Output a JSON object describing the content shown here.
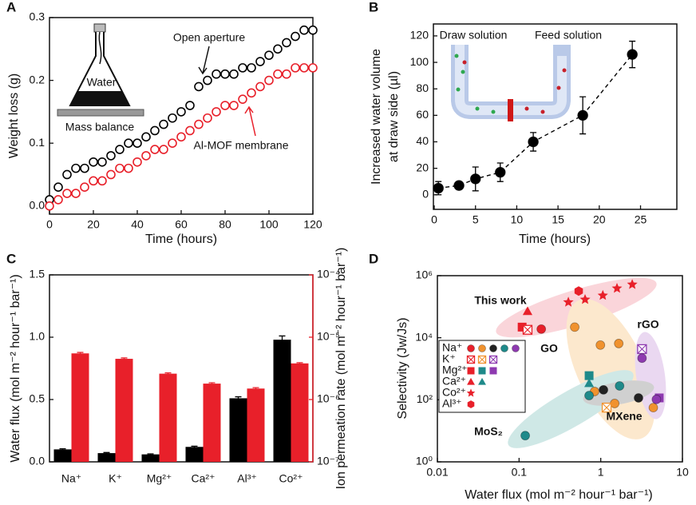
{
  "chart_data": [
    {
      "panel": "A",
      "type": "scatter",
      "xlabel": "Time (hours)",
      "ylabel": "Weight loss (g)",
      "x": [
        0,
        4,
        8,
        12,
        16,
        20,
        24,
        28,
        32,
        36,
        40,
        44,
        48,
        52,
        56,
        60,
        64,
        68,
        72,
        76,
        80,
        84,
        88,
        92,
        96,
        100,
        104,
        108,
        112,
        116,
        120
      ],
      "series": [
        {
          "name": "Open aperture",
          "color": "#000000",
          "marker": "open-circle",
          "values": [
            0.01,
            0.03,
            0.05,
            0.06,
            0.06,
            0.07,
            0.07,
            0.08,
            0.09,
            0.1,
            0.1,
            0.11,
            0.12,
            0.13,
            0.14,
            0.15,
            0.16,
            0.19,
            0.2,
            0.21,
            0.21,
            0.21,
            0.22,
            0.22,
            0.23,
            0.24,
            0.25,
            0.26,
            0.27,
            0.28,
            0.28
          ]
        },
        {
          "name": "Al-MOF membrane",
          "color": "#e8202a",
          "marker": "open-circle",
          "values": [
            0.0,
            0.01,
            0.02,
            0.02,
            0.03,
            0.04,
            0.04,
            0.05,
            0.06,
            0.06,
            0.07,
            0.08,
            0.09,
            0.09,
            0.1,
            0.11,
            0.12,
            0.13,
            0.14,
            0.15,
            0.16,
            0.16,
            0.17,
            0.18,
            0.19,
            0.2,
            0.21,
            0.21,
            0.22,
            0.22,
            0.22
          ]
        }
      ],
      "xlim": [
        0,
        120
      ],
      "xticks": [
        0,
        20,
        40,
        60,
        80,
        100,
        120
      ],
      "ylim": [
        -0.013,
        0.3
      ],
      "yticks": [
        {
          "value": 0,
          "label": "0.0"
        },
        0.1,
        0.2,
        0.3
      ],
      "annotations": [
        "Water",
        "Mass balance"
      ]
    },
    {
      "panel": "B",
      "type": "scatter",
      "xlabel": "Time (hours)",
      "ylabel": [
        "Increased water volume",
        "at draw side (µl)"
      ],
      "x": [
        0.5,
        3,
        5,
        8,
        12,
        18,
        24
      ],
      "series": [
        {
          "color": "#000000",
          "marker": "ball",
          "line": "dashed",
          "values": [
            5,
            7,
            12,
            17,
            40,
            60,
            106
          ],
          "errors": [
            5,
            2,
            9,
            7,
            7,
            14,
            10
          ]
        }
      ],
      "xlim": [
        -0.1,
        29.4
      ],
      "xticks": [
        0,
        5,
        10,
        15,
        20,
        25
      ],
      "ylim": [
        -11,
        129
      ],
      "yticks": [
        0,
        20,
        40,
        60,
        80,
        100,
        120
      ],
      "annotations": [
        "Draw solution",
        "Feed solution"
      ]
    },
    {
      "panel": "C",
      "type": "bar",
      "categories": [
        "Na⁺",
        "K⁺",
        "Mg²⁺",
        "Ca²⁺",
        "Al³⁺",
        "Co²⁺"
      ],
      "ylabel": "Water flux (mol m⁻² hour⁻¹ bar⁻¹)",
      "y2label": "Ion permeation rate (mol m⁻² hour⁻¹ bar⁻¹)",
      "series": [
        {
          "color": "#000000",
          "values": [
            0.1,
            0.07,
            0.06,
            0.12,
            0.51,
            0.98
          ],
          "errors": [
            0.005,
            0.005,
            0.004,
            0.006,
            0.012,
            0.03
          ]
        },
        {
          "color": "#e8202a",
          "axis": "y2",
          "values": [
            5.5e-06,
            4.5e-06,
            2.6e-06,
            1.8e-06,
            1.5e-06,
            3.8e-06
          ],
          "errors": [
            2e-07,
            1.5e-07,
            8e-08,
            6e-08,
            5e-08,
            1e-07
          ]
        }
      ],
      "ylim": [
        0,
        1.5
      ],
      "yticks": [
        {
          "value": 0,
          "label": "0.0"
        },
        0.5,
        {
          "value": 1,
          "label": "1.0"
        },
        1.5
      ],
      "y2lim": [
        1e-07,
        0.0001
      ],
      "y2log": true,
      "y2color": "#e8202a",
      "y2ticks": [
        {
          "value": 1e-07,
          "label": "10⁻⁷"
        },
        {
          "value": 1e-06,
          "label": "10⁻⁶"
        },
        {
          "value": 1e-05,
          "label": "10⁻⁵"
        },
        {
          "value": 0.0001,
          "label": "10⁻⁴"
        }
      ]
    },
    {
      "panel": "D",
      "type": "scatter",
      "xlog": true,
      "ylog": true,
      "xlabel": "Water flux (mol m⁻² hour⁻¹ bar⁻¹)",
      "ylabel": "Selectivity (Jw/Js)",
      "series": [
        {
          "name": "This work",
          "color": "#e8202a",
          "x": [
            0.109,
            0.127,
            0.187,
            0.127,
            0.537,
            0.401,
            0.643,
            1.06,
            1.58,
            2.43
          ],
          "values": [
            22000,
            18000,
            19000,
            70000,
            320000,
            140000,
            170000,
            230000,
            390000,
            520000
          ],
          "markers": [
            "square",
            "crossed-square",
            "circle",
            "triangle",
            "hexagon",
            "star",
            "star",
            "star",
            "star",
            "star"
          ]
        },
        {
          "name": "GO",
          "color": "#f0922e",
          "x": [
            0.48,
            0.99,
            1.66,
            0.84,
            1.48,
            4.4,
            1.18
          ],
          "values": [
            22000,
            5800,
            6500,
            185,
            76,
            56,
            56
          ],
          "markers": [
            "circle",
            "circle",
            "circle",
            "circle",
            "circle",
            "circle",
            "crossed-square"
          ]
        },
        {
          "name": "rGO",
          "color": "#222222",
          "x": [
            1.08,
            2.9
          ],
          "values": [
            209,
            115
          ],
          "markers": [
            "circle",
            "circle"
          ]
        },
        {
          "name": "MXene",
          "color": "#8e3ab0",
          "x": [
            3.2,
            3.2,
            5.2,
            4.8
          ],
          "values": [
            4300,
            2200,
            115,
            103
          ],
          "markers": [
            "crossed-square",
            "circle",
            "square",
            "circle"
          ]
        },
        {
          "name": "MoS₂",
          "color": "#1f8a8a",
          "x": [
            0.119,
            0.72,
            0.72,
            0.72,
            1.7
          ],
          "values": [
            7,
            600,
            335,
            137,
            280
          ],
          "markers": [
            "circle",
            "square",
            "triangle",
            "circle",
            "circle"
          ]
        }
      ],
      "xlim": [
        0.01,
        10
      ],
      "xticks": [
        0.01,
        0.1,
        1,
        10
      ],
      "ylim": [
        1,
        1000000
      ],
      "yticks": [
        {
          "value": 1,
          "label": "10⁰"
        },
        {
          "value": 100,
          "label": "10²"
        },
        {
          "value": 10000,
          "label": "10⁴"
        },
        {
          "value": 1000000,
          "label": "10⁶"
        }
      ],
      "legend": [
        {
          "label": "Na⁺",
          "marker": "circle",
          "colors": [
            "#e8202a",
            "#f0922e",
            "#222222",
            "#1f8a8a",
            "#8e3ab0"
          ]
        },
        {
          "label": "K⁺",
          "marker": "crossed-square",
          "colors": [
            "#e8202a",
            "#f0922e",
            "#8e3ab0"
          ]
        },
        {
          "label": "Mg²⁺",
          "marker": "square",
          "colors": [
            "#e8202a",
            "#1f8a8a",
            "#8e3ab0"
          ]
        },
        {
          "label": "Ca²⁺",
          "marker": "triangle",
          "colors": [
            "#e8202a",
            "#1f8a8a"
          ]
        },
        {
          "label": "Co²⁺",
          "marker": "star",
          "colors": [
            "#e8202a"
          ]
        },
        {
          "label": "Al³⁺",
          "marker": "hexagon",
          "colors": [
            "#e8202a"
          ]
        }
      ]
    }
  ]
}
